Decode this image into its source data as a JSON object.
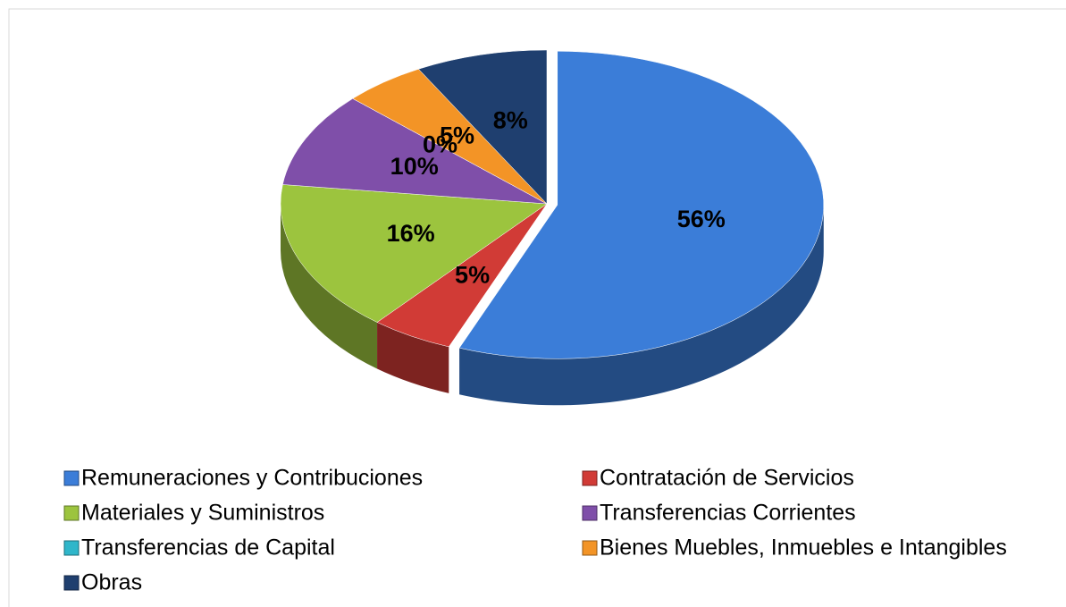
{
  "chart_data": {
    "type": "pie",
    "categories": [
      "Remuneraciones y Contribuciones",
      "Contratación de Servicios",
      "Materiales y Suministros",
      "Transferencias Corrientes",
      "Transferencias de Capital",
      "Bienes Muebles, Inmuebles e Intangibles",
      "Obras"
    ],
    "values": [
      56,
      5,
      16,
      10,
      0,
      5,
      8
    ],
    "value_labels": [
      "56%",
      "5%",
      "16%",
      "10%",
      "0%",
      "5%",
      "8%"
    ],
    "colors": [
      "#3b7dd8",
      "#d13b36",
      "#9cc43e",
      "#7f4fa9",
      "#2fb6ca",
      "#f39426",
      "#1f3f6f"
    ],
    "legend": "bottom"
  }
}
